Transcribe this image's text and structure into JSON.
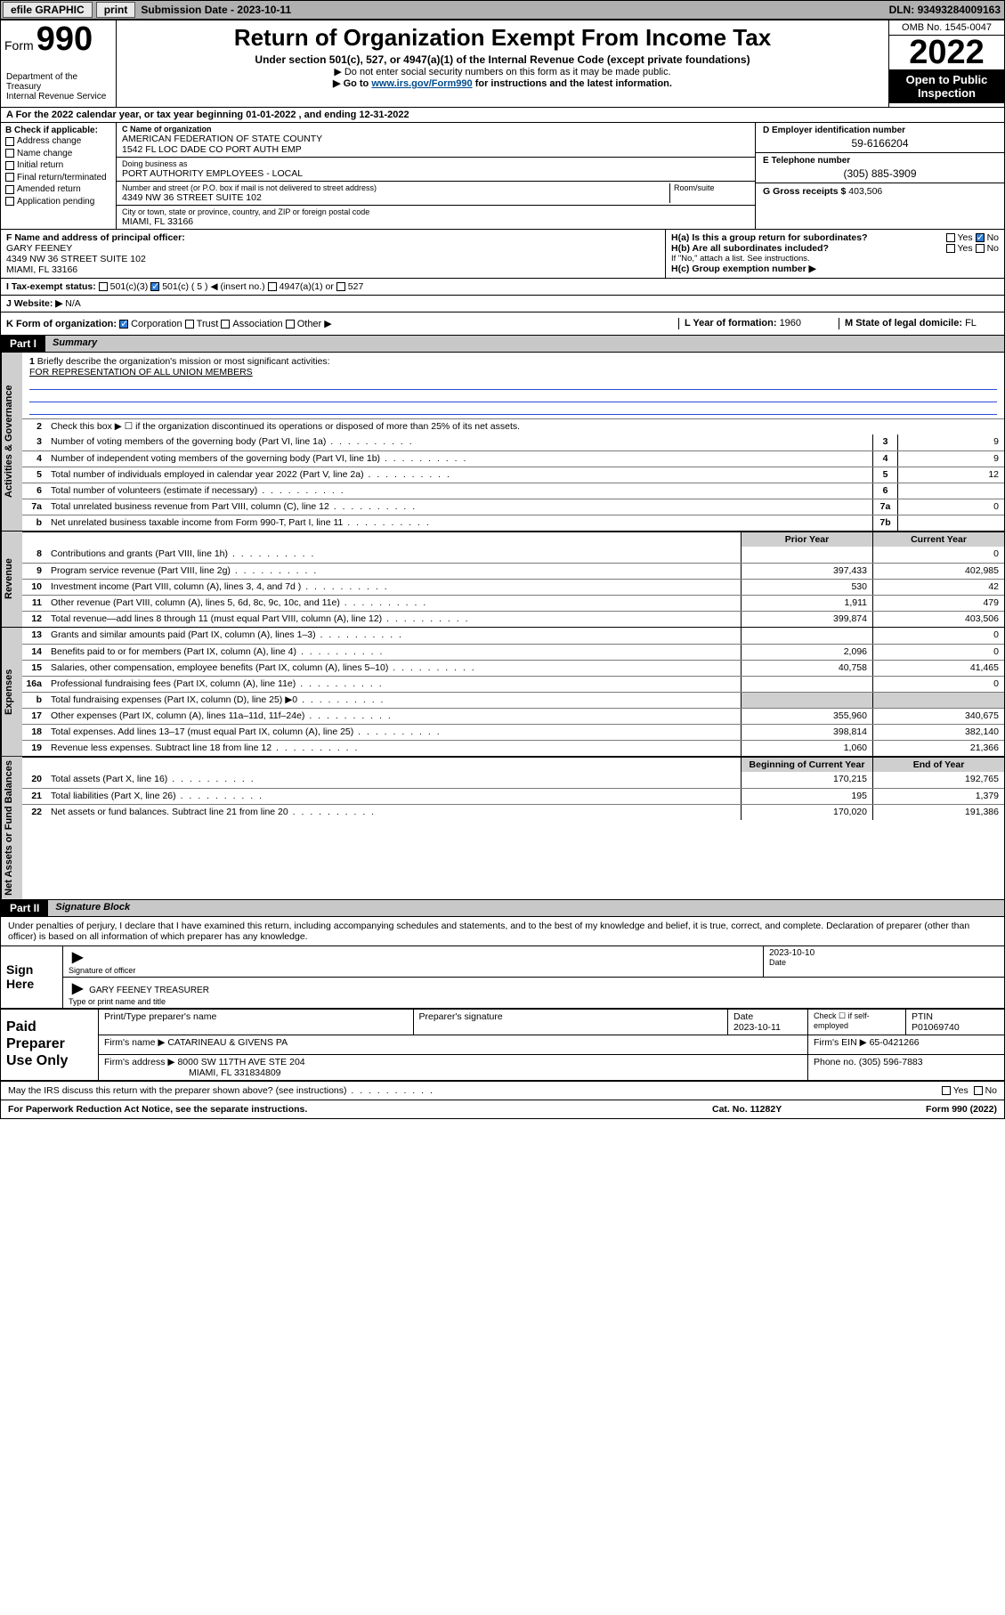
{
  "topbar": {
    "efile": "efile GRAPHIC",
    "print": "print",
    "subdate_lbl": "Submission Date - ",
    "subdate": "2023-10-11",
    "dln_lbl": "DLN: ",
    "dln": "93493284009163"
  },
  "header": {
    "form_small": "Form",
    "form_big": "990",
    "title": "Return of Organization Exempt From Income Tax",
    "subtitle": "Under section 501(c), 527, or 4947(a)(1) of the Internal Revenue Code (except private foundations)",
    "note1": "▶ Do not enter social security numbers on this form as it may be made public.",
    "note2_pre": "▶ Go to ",
    "note2_link": "www.irs.gov/Form990",
    "note2_post": " for instructions and the latest information.",
    "dept": "Department of the Treasury\nInternal Revenue Service",
    "omb": "OMB No. 1545-0047",
    "taxyear": "2022",
    "openpub": "Open to Public Inspection"
  },
  "periodA": {
    "text_pre": "A For the 2022 calendar year, or tax year beginning ",
    "begin": "01-01-2022",
    "mid": " , and ending ",
    "end": "12-31-2022"
  },
  "boxB": {
    "hdr": "B Check if applicable:",
    "items": [
      "Address change",
      "Name change",
      "Initial return",
      "Final return/terminated",
      "Amended return",
      "Application pending"
    ]
  },
  "boxC": {
    "namelbl": "C Name of organization",
    "name1": "AMERICAN FEDERATION OF STATE COUNTY",
    "name2": "1542 FL LOC DADE CO PORT AUTH EMP",
    "dba_lbl": "Doing business as",
    "dba": "PORT AUTHORITY EMPLOYEES - LOCAL",
    "addr_lbl": "Number and street (or P.O. box if mail is not delivered to street address)",
    "room_lbl": "Room/suite",
    "addr": "4349 NW 36 STREET SUITE 102",
    "city_lbl": "City or town, state or province, country, and ZIP or foreign postal code",
    "city": "MIAMI, FL  33166"
  },
  "boxD": {
    "lbl": "D Employer identification number",
    "val": "59-6166204"
  },
  "boxE": {
    "lbl": "E Telephone number",
    "val": "(305) 885-3909"
  },
  "boxG": {
    "lbl": "G Gross receipts $ ",
    "val": "403,506"
  },
  "boxF": {
    "lbl": "F Name and address of principal officer:",
    "name": "GARY FEENEY",
    "addr1": "4349 NW 36 STREET SUITE 102",
    "addr2": "MIAMI, FL  33166"
  },
  "boxH": {
    "ha": "H(a)  Is this a group return for subordinates?",
    "ha_yes": "Yes",
    "ha_no": "No",
    "hb": "H(b)  Are all subordinates included?",
    "hb_note": "If \"No,\" attach a list. See instructions.",
    "hc": "H(c)  Group exemption number ▶"
  },
  "boxI": {
    "lbl": "I   Tax-exempt status:",
    "o1": "501(c)(3)",
    "o2": "501(c) ( 5 ) ◀ (insert no.)",
    "o3": "4947(a)(1) or",
    "o4": "527"
  },
  "boxJ": {
    "lbl": "J   Website: ▶",
    "val": "N/A"
  },
  "boxK": {
    "lbl": "K Form of organization:",
    "o1": "Corporation",
    "o2": "Trust",
    "o3": "Association",
    "o4": "Other ▶"
  },
  "boxL": {
    "lbl": "L Year of formation: ",
    "val": "1960"
  },
  "boxM": {
    "lbl": "M State of legal domicile: ",
    "val": "FL"
  },
  "part1": {
    "bar": "Part I",
    "title": "Summary",
    "l1_lbl": "Briefly describe the organization's mission or most significant activities:",
    "l1_val": "FOR REPRESENTATION OF ALL UNION MEMBERS",
    "l2": "Check this box ▶ ☐  if the organization discontinued its operations or disposed of more than 25% of its net assets.",
    "gov_lines": [
      {
        "n": "3",
        "t": "Number of voting members of the governing body (Part VI, line 1a)",
        "box": "3",
        "v": "9"
      },
      {
        "n": "4",
        "t": "Number of independent voting members of the governing body (Part VI, line 1b)",
        "box": "4",
        "v": "9"
      },
      {
        "n": "5",
        "t": "Total number of individuals employed in calendar year 2022 (Part V, line 2a)",
        "box": "5",
        "v": "12"
      },
      {
        "n": "6",
        "t": "Total number of volunteers (estimate if necessary)",
        "box": "6",
        "v": ""
      },
      {
        "n": "7a",
        "t": "Total unrelated business revenue from Part VIII, column (C), line 12",
        "box": "7a",
        "v": "0"
      },
      {
        "n": "b",
        "t": "Net unrelated business taxable income from Form 990-T, Part I, line 11",
        "box": "7b",
        "v": ""
      }
    ],
    "col_prior": "Prior Year",
    "col_curr": "Current Year",
    "rev_lines": [
      {
        "n": "8",
        "t": "Contributions and grants (Part VIII, line 1h)",
        "p": "",
        "c": "0"
      },
      {
        "n": "9",
        "t": "Program service revenue (Part VIII, line 2g)",
        "p": "397,433",
        "c": "402,985"
      },
      {
        "n": "10",
        "t": "Investment income (Part VIII, column (A), lines 3, 4, and 7d )",
        "p": "530",
        "c": "42"
      },
      {
        "n": "11",
        "t": "Other revenue (Part VIII, column (A), lines 5, 6d, 8c, 9c, 10c, and 11e)",
        "p": "1,911",
        "c": "479"
      },
      {
        "n": "12",
        "t": "Total revenue—add lines 8 through 11 (must equal Part VIII, column (A), line 12)",
        "p": "399,874",
        "c": "403,506"
      }
    ],
    "exp_lines": [
      {
        "n": "13",
        "t": "Grants and similar amounts paid (Part IX, column (A), lines 1–3)",
        "p": "",
        "c": "0"
      },
      {
        "n": "14",
        "t": "Benefits paid to or for members (Part IX, column (A), line 4)",
        "p": "2,096",
        "c": "0"
      },
      {
        "n": "15",
        "t": "Salaries, other compensation, employee benefits (Part IX, column (A), lines 5–10)",
        "p": "40,758",
        "c": "41,465"
      },
      {
        "n": "16a",
        "t": "Professional fundraising fees (Part IX, column (A), line 11e)",
        "p": "",
        "c": "0"
      },
      {
        "n": "b",
        "t": "Total fundraising expenses (Part IX, column (D), line 25) ▶0",
        "p": "shade",
        "c": "shade"
      },
      {
        "n": "17",
        "t": "Other expenses (Part IX, column (A), lines 11a–11d, 11f–24e)",
        "p": "355,960",
        "c": "340,675"
      },
      {
        "n": "18",
        "t": "Total expenses. Add lines 13–17 (must equal Part IX, column (A), line 25)",
        "p": "398,814",
        "c": "382,140"
      },
      {
        "n": "19",
        "t": "Revenue less expenses. Subtract line 18 from line 12",
        "p": "1,060",
        "c": "21,366"
      }
    ],
    "col_begin": "Beginning of Current Year",
    "col_end": "End of Year",
    "na_lines": [
      {
        "n": "20",
        "t": "Total assets (Part X, line 16)",
        "p": "170,215",
        "c": "192,765"
      },
      {
        "n": "21",
        "t": "Total liabilities (Part X, line 26)",
        "p": "195",
        "c": "1,379"
      },
      {
        "n": "22",
        "t": "Net assets or fund balances. Subtract line 21 from line 20",
        "p": "170,020",
        "c": "191,386"
      }
    ],
    "tab_gov": "Activities & Governance",
    "tab_rev": "Revenue",
    "tab_exp": "Expenses",
    "tab_na": "Net Assets or Fund Balances"
  },
  "part2": {
    "bar": "Part II",
    "title": "Signature Block",
    "decl": "Under penalties of perjury, I declare that I have examined this return, including accompanying schedules and statements, and to the best of my knowledge and belief, it is true, correct, and complete. Declaration of preparer (other than officer) is based on all information of which preparer has any knowledge.",
    "signhere": "Sign Here",
    "sig_officer_lbl": "Signature of officer",
    "sig_date_lbl": "Date",
    "sig_date": "2023-10-10",
    "sig_name": "GARY FEENEY TREASURER",
    "sig_name_lbl": "Type or print name and title",
    "paid": "Paid Preparer Use Only",
    "p_name_lbl": "Print/Type preparer's name",
    "p_sig_lbl": "Preparer's signature",
    "p_date_lbl": "Date",
    "p_date": "2023-10-11",
    "p_check_lbl": "Check ☐ if self-employed",
    "p_ptin_lbl": "PTIN",
    "p_ptin": "P01069740",
    "firm_name_lbl": "Firm's name    ▶",
    "firm_name": "CATARINEAU & GIVENS PA",
    "firm_ein_lbl": "Firm's EIN ▶",
    "firm_ein": "65-0421266",
    "firm_addr_lbl": "Firm's address ▶",
    "firm_addr1": "8000 SW 117TH AVE STE 204",
    "firm_addr2": "MIAMI, FL  331834809",
    "firm_phone_lbl": "Phone no. ",
    "firm_phone": "(305) 596-7883",
    "may": "May the IRS discuss this return with the preparer shown above? (see instructions)",
    "may_yes": "Yes",
    "may_no": "No"
  },
  "footer": {
    "pra": "For Paperwork Reduction Act Notice, see the separate instructions.",
    "cat": "Cat. No. 11282Y",
    "form": "Form 990 (2022)"
  }
}
